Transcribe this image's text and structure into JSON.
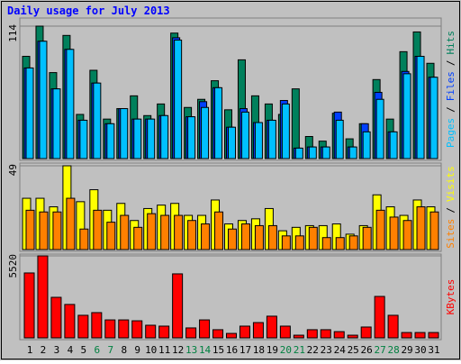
{
  "chart_data": [
    {
      "type": "bar",
      "title": "Daily usage for July 2013",
      "ylim": [
        0,
        114
      ],
      "yticks": [
        114
      ],
      "legend_separator": "/",
      "series": [
        {
          "name": "Pages",
          "color": "#00c0ff",
          "values": [
            78,
            101,
            60,
            94,
            33,
            65,
            30,
            43,
            34,
            34,
            37,
            102,
            36,
            44,
            61,
            27,
            40,
            31,
            33,
            47,
            9,
            10,
            10,
            33,
            10,
            23,
            51,
            23,
            73,
            88,
            70
          ]
        },
        {
          "name": "Files",
          "color": "#0040ff",
          "values": [
            78,
            101,
            60,
            94,
            33,
            65,
            30,
            43,
            34,
            34,
            37,
            104,
            36,
            49,
            61,
            27,
            43,
            31,
            33,
            50,
            9,
            10,
            10,
            40,
            10,
            30,
            57,
            23,
            75,
            88,
            70
          ]
        },
        {
          "name": "Hits",
          "color": "#00805c",
          "values": [
            88,
            114,
            74,
            106,
            38,
            76,
            34,
            43,
            54,
            37,
            47,
            108,
            44,
            51,
            67,
            42,
            85,
            54,
            47,
            38,
            60,
            19,
            15,
            39,
            17,
            30,
            68,
            34,
            92,
            109,
            82
          ]
        }
      ]
    },
    {
      "type": "bar",
      "ylim": [
        0,
        49
      ],
      "yticks": [
        49
      ],
      "legend_separator": "/",
      "series": [
        {
          "name": "Sites",
          "color": "#ff8000",
          "values": [
            23,
            22,
            22,
            30,
            12,
            23,
            16,
            20,
            13,
            21,
            20,
            20,
            17,
            15,
            22,
            12,
            15,
            14,
            14,
            8,
            8,
            13,
            7,
            7,
            8,
            13,
            23,
            19,
            17,
            25,
            22
          ]
        },
        {
          "name": "Visits",
          "color": "#ffff00",
          "values": [
            30,
            30,
            25,
            49,
            28,
            35,
            23,
            27,
            17,
            24,
            26,
            27,
            20,
            20,
            29,
            15,
            17,
            18,
            24,
            11,
            13,
            14,
            14,
            15,
            9,
            14,
            32,
            25,
            20,
            29,
            25
          ]
        }
      ]
    },
    {
      "type": "bar",
      "ylim": [
        0,
        5520
      ],
      "yticks": [
        5520
      ],
      "categories": [
        "1",
        "2",
        "3",
        "4",
        "5",
        "6",
        "7",
        "8",
        "9",
        "10",
        "11",
        "12",
        "13",
        "14",
        "15",
        "16",
        "17",
        "18",
        "19",
        "20",
        "21",
        "22",
        "23",
        "24",
        "25",
        "26",
        "27",
        "28",
        "29",
        "30",
        "31"
      ],
      "highlight_indices": [
        5,
        6,
        12,
        13,
        19,
        20,
        26,
        27
      ],
      "highlight_color": "#008040",
      "series": [
        {
          "name": "KBytes",
          "color": "#ff0000",
          "values": [
            4370,
            5520,
            2730,
            2250,
            1520,
            1700,
            1210,
            1210,
            1150,
            850,
            790,
            4310,
            670,
            1210,
            550,
            300,
            790,
            1030,
            1460,
            790,
            180,
            550,
            550,
            420,
            180,
            730,
            2790,
            1520,
            360,
            360,
            360
          ]
        }
      ]
    }
  ]
}
